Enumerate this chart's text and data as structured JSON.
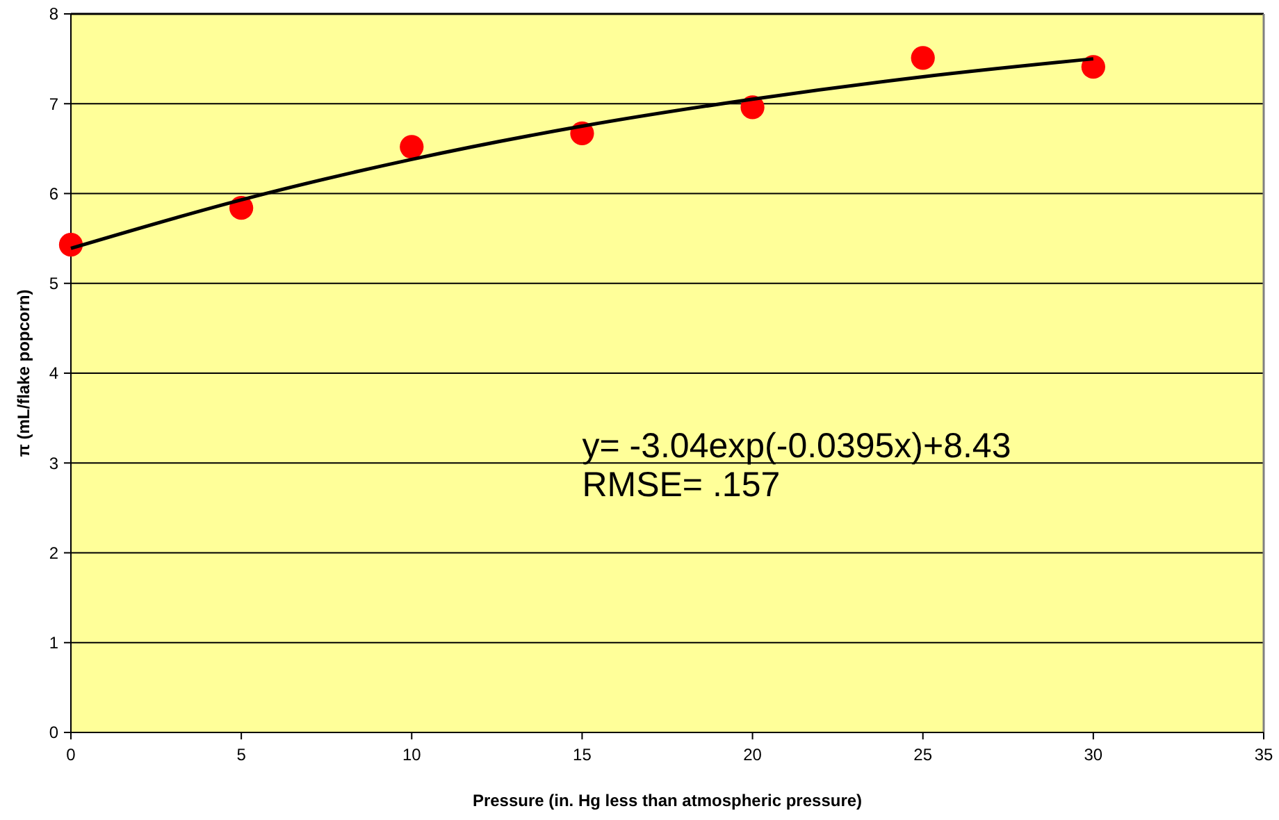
{
  "chart_data": {
    "type": "scatter",
    "xlabel": "Pressure (in. Hg less than atmospheric pressure)",
    "ylabel": "π (mL/flake popcorn)",
    "xlim": [
      0,
      35
    ],
    "xticks": [
      0,
      5,
      10,
      15,
      20,
      25,
      30,
      35
    ],
    "ylim": [
      0,
      8
    ],
    "yticks": [
      0,
      1,
      2,
      3,
      4,
      5,
      6,
      7,
      8
    ],
    "grid": "y",
    "series": [
      {
        "color": "#ff0000",
        "marker": "circle",
        "x": [
          0,
          5,
          10,
          15,
          20,
          25,
          30
        ],
        "values": [
          5.43,
          5.84,
          6.52,
          6.67,
          6.96,
          7.51,
          7.41
        ]
      },
      {
        "type": "line",
        "color": "#000000",
        "x": [
          0,
          5,
          10,
          15,
          20,
          25,
          30
        ],
        "values": [
          5.39,
          5.93,
          6.38,
          6.75,
          7.05,
          7.3,
          7.5
        ],
        "line_style": "solid",
        "marker": "none"
      }
    ],
    "annotations": [
      "y= -3.04exp(-0.0395x)+8.43",
      "RMSE= .157"
    ]
  }
}
